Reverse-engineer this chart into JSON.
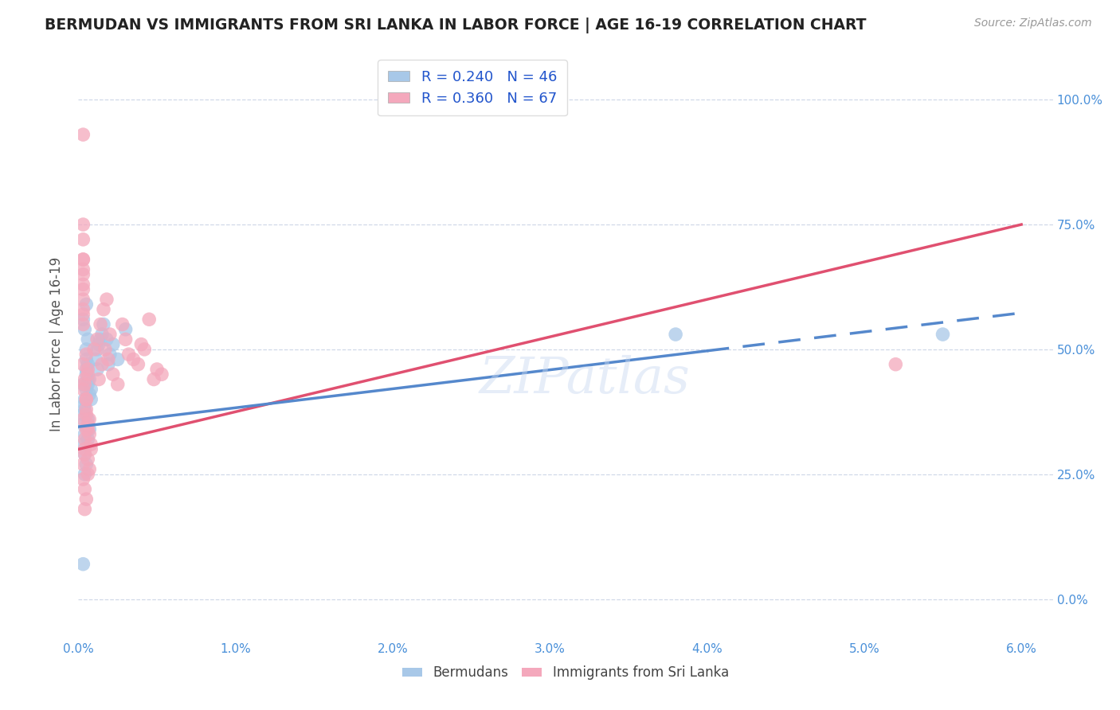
{
  "title": "BERMUDAN VS IMMIGRANTS FROM SRI LANKA IN LABOR FORCE | AGE 16-19 CORRELATION CHART",
  "source": "Source: ZipAtlas.com",
  "ylabel_label": "In Labor Force | Age 16-19",
  "xlim": [
    0.0,
    0.062
  ],
  "ylim": [
    -0.08,
    1.1
  ],
  "x_ticks": [
    0.0,
    0.01,
    0.02,
    0.03,
    0.04,
    0.05,
    0.06
  ],
  "y_ticks": [
    0.0,
    0.25,
    0.5,
    0.75,
    1.0
  ],
  "blue_scatter_color": "#a8c8e8",
  "pink_scatter_color": "#f4a8bc",
  "blue_line_color": "#5588cc",
  "pink_line_color": "#e05070",
  "background_color": "#ffffff",
  "grid_color": "#d0d8e8",
  "tick_color": "#4a90d9",
  "watermark": "ZIPatlas",
  "legend_R_N_color": "#2255cc",
  "blue_intercept": 0.345,
  "blue_slope": 3.8,
  "pink_intercept": 0.3,
  "pink_slope": 7.5,
  "blue_x": [
    0.0003,
    0.0005,
    0.0004,
    0.0006,
    0.0008,
    0.0005,
    0.0007,
    0.0004,
    0.0003,
    0.0006,
    0.0008,
    0.0005,
    0.0006,
    0.0004,
    0.0005,
    0.0007,
    0.0003,
    0.0004,
    0.0006,
    0.0005,
    0.0004,
    0.0003,
    0.0005,
    0.0006,
    0.0004,
    0.0003,
    0.0005,
    0.0004,
    0.0006,
    0.0007,
    0.0012,
    0.0014,
    0.0011,
    0.0013,
    0.0015,
    0.0012,
    0.0016,
    0.0018,
    0.002,
    0.0022,
    0.0019,
    0.0025,
    0.003,
    0.0003,
    0.055,
    0.038
  ],
  "blue_y": [
    0.43,
    0.46,
    0.4,
    0.44,
    0.42,
    0.48,
    0.41,
    0.39,
    0.37,
    0.43,
    0.4,
    0.45,
    0.36,
    0.38,
    0.42,
    0.44,
    0.35,
    0.33,
    0.47,
    0.5,
    0.54,
    0.56,
    0.59,
    0.52,
    0.29,
    0.31,
    0.27,
    0.25,
    0.32,
    0.34,
    0.5,
    0.52,
    0.48,
    0.51,
    0.53,
    0.46,
    0.55,
    0.52,
    0.49,
    0.51,
    0.47,
    0.48,
    0.54,
    0.07,
    0.53,
    0.53
  ],
  "pink_x": [
    0.0003,
    0.0005,
    0.0004,
    0.0006,
    0.0008,
    0.0005,
    0.0007,
    0.0004,
    0.0003,
    0.0006,
    0.0008,
    0.0005,
    0.0006,
    0.0004,
    0.0005,
    0.0007,
    0.0003,
    0.0004,
    0.0006,
    0.0005,
    0.0004,
    0.0003,
    0.0005,
    0.0006,
    0.0004,
    0.0003,
    0.0005,
    0.0004,
    0.0006,
    0.0007,
    0.001,
    0.0012,
    0.0014,
    0.0016,
    0.0018,
    0.002,
    0.0015,
    0.0013,
    0.0017,
    0.0019,
    0.0022,
    0.0025,
    0.003,
    0.0032,
    0.0028,
    0.0035,
    0.004,
    0.0045,
    0.0038,
    0.0042,
    0.0048,
    0.005,
    0.0053,
    0.0003,
    0.0003,
    0.0003,
    0.052,
    0.0003,
    0.0003,
    0.0003,
    0.0003,
    0.0003,
    0.0003,
    0.0003,
    0.0003,
    0.0003,
    0.0003
  ],
  "pink_y": [
    0.36,
    0.38,
    0.32,
    0.34,
    0.3,
    0.4,
    0.33,
    0.29,
    0.27,
    0.35,
    0.31,
    0.37,
    0.28,
    0.3,
    0.34,
    0.36,
    0.42,
    0.44,
    0.46,
    0.4,
    0.43,
    0.47,
    0.49,
    0.45,
    0.22,
    0.24,
    0.2,
    0.18,
    0.25,
    0.26,
    0.5,
    0.52,
    0.55,
    0.58,
    0.6,
    0.53,
    0.47,
    0.44,
    0.5,
    0.48,
    0.45,
    0.43,
    0.52,
    0.49,
    0.55,
    0.48,
    0.51,
    0.56,
    0.47,
    0.5,
    0.44,
    0.46,
    0.45,
    0.93,
    0.68,
    0.63,
    0.47,
    0.75,
    0.72,
    0.68,
    0.62,
    0.65,
    0.66,
    0.6,
    0.55,
    0.57,
    0.58
  ]
}
